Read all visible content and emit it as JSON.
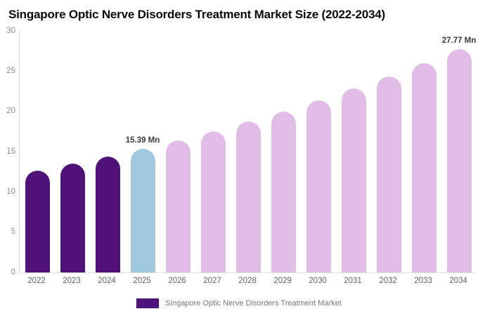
{
  "title": "Singapore Optic Nerve Disorders Treatment Market Size (2022-2034)",
  "legend": {
    "swatch_color": "#4E1279",
    "label": "Singapore Optic Nerve Disorders Treatment Market"
  },
  "colors": {
    "historical": "#4E1279",
    "base_year": "#A0C9E0",
    "forecast": "#E0BCE6",
    "value_label_text": "#3A3A3A",
    "axis_line": "#D6D6D6"
  },
  "chart_data": {
    "type": "bar",
    "title": "Singapore Optic Nerve Disorders Treatment Market Size (2022-2034)",
    "unit": "Mn",
    "categories": [
      "2022",
      "2023",
      "2024",
      "2025",
      "2026",
      "2027",
      "2028",
      "2029",
      "2030",
      "2031",
      "2032",
      "2033",
      "2034"
    ],
    "values": [
      12.64,
      13.5,
      14.41,
      15.39,
      16.43,
      17.55,
      18.74,
      20.01,
      21.36,
      22.81,
      24.36,
      26.01,
      27.77
    ],
    "point_labels": [
      "",
      "",
      "",
      "15.39 Mn",
      "",
      "",
      "",
      "",
      "",
      "",
      "",
      "",
      "27.77 Mn"
    ],
    "bar_periods": [
      "historical",
      "historical",
      "historical",
      "base_year",
      "forecast",
      "forecast",
      "forecast",
      "forecast",
      "forecast",
      "forecast",
      "forecast",
      "forecast",
      "forecast"
    ],
    "yticks": [
      0,
      5,
      10,
      15,
      20,
      25,
      30
    ],
    "ylim": [
      0,
      30
    ],
    "xlabel": "",
    "ylabel": "",
    "grid": false,
    "legend_position": "bottom"
  }
}
